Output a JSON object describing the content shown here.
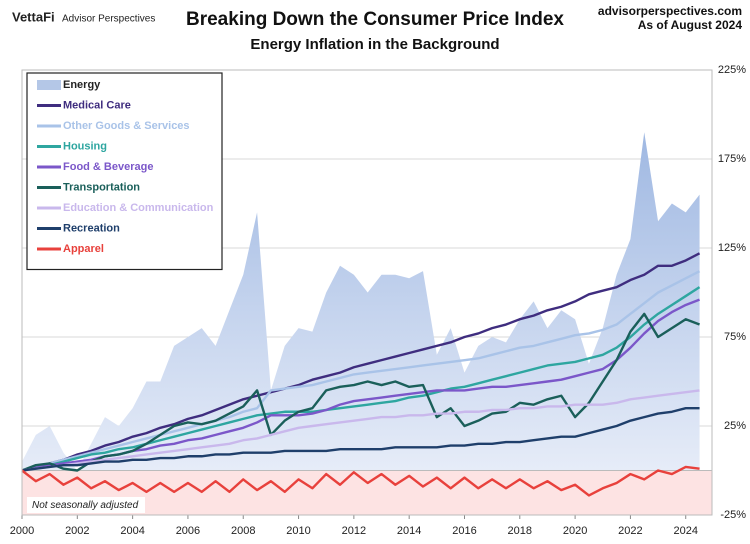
{
  "chart_data": {
    "type": "line",
    "brand": "VettaFi",
    "brand_sub": "Advisor Perspectives",
    "title": "Breaking Down the Consumer Price Index",
    "subtitle": "Energy Inflation in the Background",
    "source": "advisorperspectives.com",
    "date_note": "As of August 2024",
    "note": "Not seasonally adjusted",
    "legend": "top-left",
    "grid": true,
    "xlim": [
      2000,
      2024.95
    ],
    "xticks": [
      2000,
      2002,
      2004,
      2006,
      2008,
      2010,
      2012,
      2014,
      2016,
      2018,
      2020,
      2022,
      2024
    ],
    "ylim": [
      -25,
      225
    ],
    "yticks": [
      {
        "value": -25,
        "label": "-25%"
      },
      {
        "value": 25,
        "label": "25%"
      },
      {
        "value": 75,
        "label": "75%"
      },
      {
        "value": 125,
        "label": "125%"
      },
      {
        "value": 175,
        "label": "175%"
      },
      {
        "value": 225,
        "label": "225%"
      }
    ],
    "x": [
      2000,
      2000.5,
      2001,
      2001.5,
      2002,
      2002.5,
      2003,
      2003.5,
      2004,
      2004.5,
      2005,
      2005.5,
      2006,
      2006.5,
      2007,
      2007.5,
      2008,
      2008.5,
      2009,
      2009.5,
      2010,
      2010.5,
      2011,
      2011.5,
      2012,
      2012.5,
      2013,
      2013.5,
      2014,
      2014.5,
      2015,
      2015.5,
      2016,
      2016.5,
      2017,
      2017.5,
      2018,
      2018.5,
      2019,
      2019.5,
      2020,
      2020.5,
      2021,
      2021.5,
      2022,
      2022.5,
      2023,
      2023.5,
      2024,
      2024.5
    ],
    "series": [
      {
        "name": "Energy",
        "kind": "area",
        "color": "#b4c7e7",
        "values": [
          5,
          20,
          25,
          10,
          0,
          15,
          30,
          25,
          35,
          50,
          50,
          70,
          75,
          80,
          70,
          90,
          110,
          145,
          45,
          70,
          80,
          78,
          100,
          115,
          110,
          100,
          110,
          110,
          108,
          112,
          65,
          80,
          55,
          70,
          75,
          72,
          85,
          95,
          80,
          90,
          85,
          60,
          80,
          110,
          130,
          190,
          140,
          150,
          145,
          155
        ]
      },
      {
        "name": "Medical Care",
        "color": "#3f2d7f",
        "values": [
          0,
          2,
          4,
          6,
          9,
          11,
          14,
          16,
          19,
          21,
          24,
          26,
          29,
          31,
          34,
          37,
          40,
          42,
          44,
          46,
          48,
          51,
          53,
          55,
          58,
          60,
          62,
          64,
          66,
          68,
          70,
          72,
          75,
          77,
          80,
          82,
          85,
          87,
          90,
          92,
          95,
          99,
          101,
          103,
          107,
          110,
          115,
          115,
          118,
          122
        ]
      },
      {
        "name": "Other Goods & Services",
        "color": "#a9c3e8",
        "values": [
          0,
          2,
          4,
          6,
          8,
          10,
          12,
          14,
          16,
          18,
          20,
          22,
          24,
          26,
          28,
          30,
          33,
          35,
          45,
          46,
          47,
          48,
          50,
          52,
          54,
          55,
          56,
          57,
          58,
          59,
          60,
          61,
          62,
          63,
          65,
          67,
          69,
          70,
          72,
          74,
          76,
          77,
          79,
          82,
          88,
          94,
          100,
          104,
          108,
          112
        ]
      },
      {
        "name": "Housing",
        "color": "#2ea6a0",
        "values": [
          0,
          1.5,
          3,
          5,
          7,
          9,
          10,
          12,
          13,
          15,
          17,
          19,
          21,
          23,
          25,
          27,
          29,
          31,
          32,
          33,
          33,
          33,
          34,
          35,
          36,
          37,
          38,
          39,
          41,
          42,
          44,
          46,
          47,
          49,
          51,
          53,
          55,
          57,
          59,
          60,
          61,
          63,
          65,
          69,
          75,
          82,
          88,
          93,
          98,
          103
        ]
      },
      {
        "name": "Food & Beverage",
        "color": "#7b57c9",
        "values": [
          0,
          1.5,
          3,
          4,
          5,
          6,
          8,
          9,
          11,
          12,
          14,
          15,
          17,
          18,
          20,
          22,
          24,
          27,
          31,
          31,
          31,
          32,
          34,
          37,
          39,
          40,
          41,
          42,
          43,
          44,
          45,
          45,
          45,
          46,
          47,
          47,
          48,
          49,
          50,
          51,
          53,
          55,
          57,
          62,
          69,
          77,
          84,
          89,
          93,
          96
        ]
      },
      {
        "name": "Transportation",
        "color": "#1a5f5a",
        "values": [
          0,
          3,
          4,
          1,
          0,
          5,
          8,
          9,
          11,
          15,
          20,
          25,
          27,
          26,
          28,
          32,
          36,
          45,
          20,
          28,
          33,
          35,
          45,
          47,
          48,
          50,
          48,
          50,
          47,
          48,
          30,
          35,
          25,
          28,
          32,
          33,
          38,
          37,
          40,
          42,
          30,
          38,
          50,
          62,
          78,
          88,
          75,
          80,
          85,
          82
        ]
      },
      {
        "name": "Education & Communication",
        "color": "#c9b8ec",
        "values": [
          0,
          1,
          2,
          3,
          4,
          5,
          6,
          7,
          8,
          9,
          10,
          11,
          12,
          13,
          14,
          15,
          17,
          18,
          20,
          22,
          24,
          25,
          26,
          27,
          28,
          29,
          30,
          30,
          31,
          31,
          32,
          32,
          33,
          33,
          34,
          34,
          35,
          35,
          36,
          36,
          37,
          37,
          37,
          38,
          40,
          41,
          42,
          43,
          44,
          45
        ]
      },
      {
        "name": "Recreation",
        "color": "#1f3f6b",
        "values": [
          0,
          1,
          2,
          3,
          3,
          4,
          5,
          5,
          6,
          6,
          7,
          7,
          8,
          8,
          9,
          9,
          10,
          10,
          10,
          11,
          11,
          11,
          11,
          12,
          12,
          12,
          12,
          13,
          13,
          13,
          13,
          14,
          14,
          15,
          15,
          16,
          16,
          17,
          18,
          19,
          19,
          21,
          23,
          25,
          28,
          30,
          32,
          33,
          35,
          35
        ]
      },
      {
        "name": "Apparel",
        "color": "#e8413c",
        "values": [
          0,
          -6,
          -2,
          -8,
          -4,
          -10,
          -6,
          -11,
          -7,
          -12,
          -7,
          -12,
          -7,
          -12,
          -6,
          -12,
          -5,
          -11,
          -6,
          -12,
          -5,
          -10,
          -2,
          -8,
          -1,
          -7,
          -2,
          -8,
          -3,
          -9,
          -4,
          -10,
          -4,
          -10,
          -5,
          -10,
          -5,
          -10,
          -6,
          -11,
          -8,
          -14,
          -10,
          -7,
          -2,
          -5,
          0,
          -2,
          2,
          1
        ]
      }
    ]
  }
}
